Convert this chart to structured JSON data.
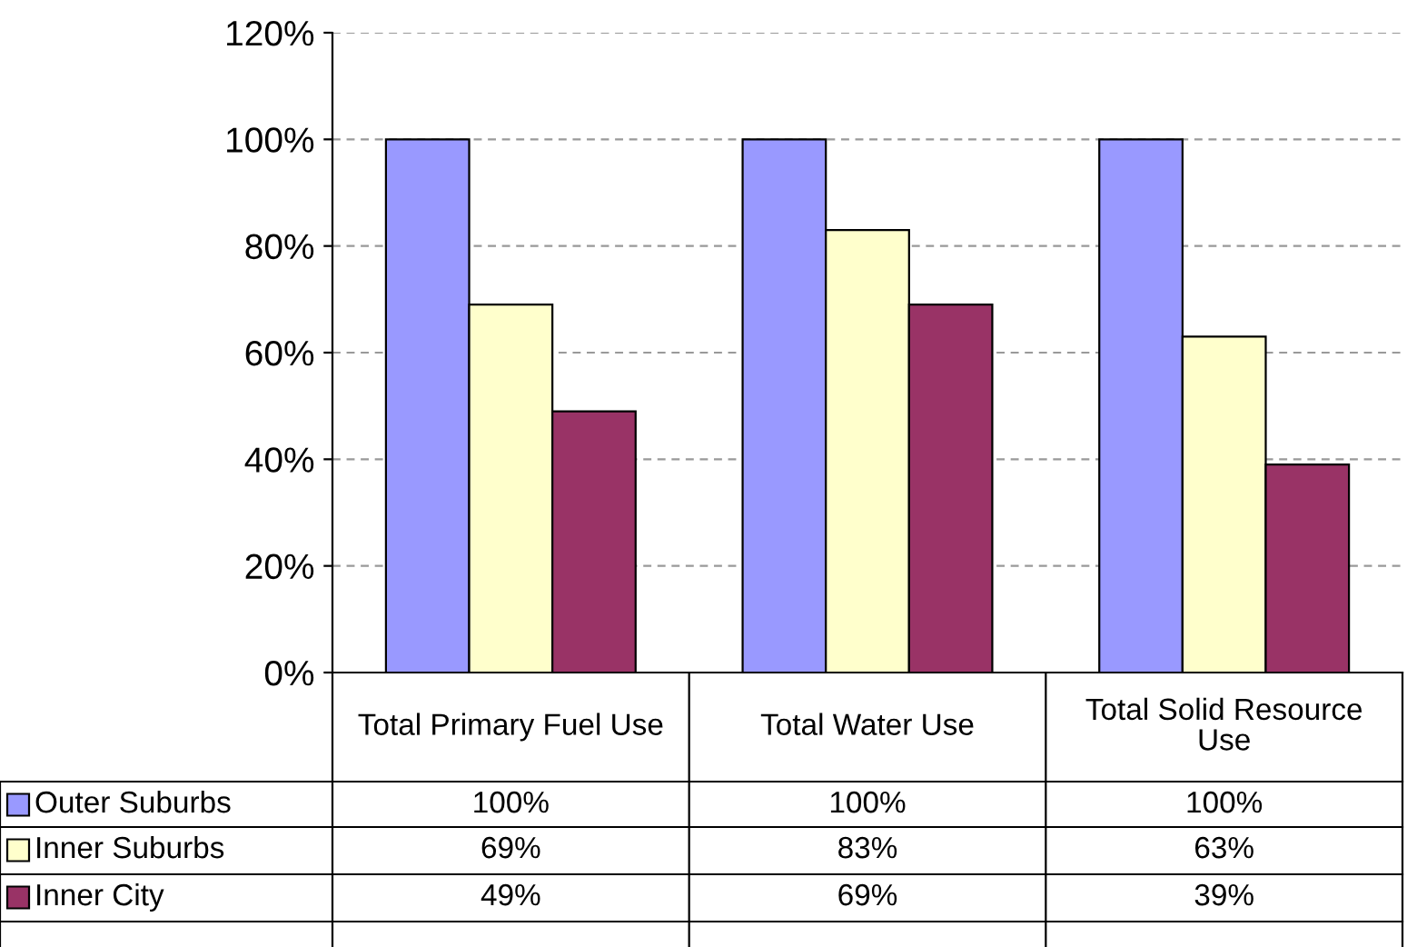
{
  "chart_data": {
    "type": "bar",
    "categories": [
      "Total Primary Fuel Use",
      "Total Water Use",
      "Total Solid Resource Use"
    ],
    "series": [
      {
        "name": "Outer Suburbs",
        "color": "#9999ff",
        "values": [
          100,
          100,
          100
        ],
        "value_labels": [
          "100%",
          "100%",
          "100%"
        ]
      },
      {
        "name": "Inner Suburbs",
        "color": "#ffffcc",
        "values": [
          69,
          83,
          63
        ],
        "value_labels": [
          "69%",
          "83%",
          "63%"
        ]
      },
      {
        "name": "Inner City",
        "color": "#993366",
        "values": [
          49,
          69,
          39
        ],
        "value_labels": [
          "49%",
          "69%",
          "39%"
        ]
      }
    ],
    "ylim": [
      0,
      120
    ],
    "yticks": [
      {
        "value": 0,
        "label": "0%"
      },
      {
        "value": 20,
        "label": "20%"
      },
      {
        "value": 40,
        "label": "40%"
      },
      {
        "value": 60,
        "label": "60%"
      },
      {
        "value": 80,
        "label": "80%"
      },
      {
        "value": 100,
        "label": "100%"
      },
      {
        "value": 120,
        "label": "120%"
      }
    ],
    "grid": "y",
    "legend": "bottom"
  }
}
